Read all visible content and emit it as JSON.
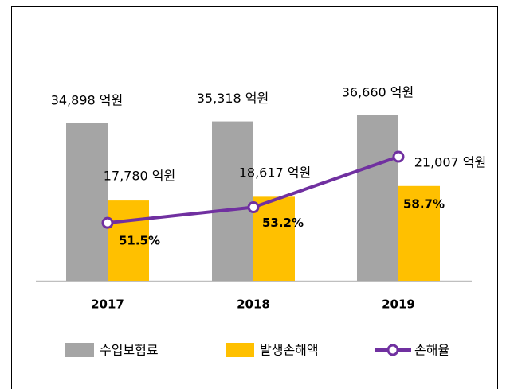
{
  "chart_data": {
    "type": "bar",
    "categories": [
      "2017",
      "2018",
      "2019"
    ],
    "ylim": [
      0,
      40000
    ],
    "y2lim": [
      40,
      60
    ],
    "series": [
      {
        "name": "수입보험료",
        "color": "#a5a5a5",
        "type": "bar",
        "values": [
          34898,
          35318,
          36660
        ],
        "value_labels": [
          "34,898 억원",
          "35,318 억원",
          "36,660 억원"
        ]
      },
      {
        "name": "발생손해액",
        "color": "#ffc000",
        "type": "bar",
        "values": [
          17780,
          18617,
          21007
        ],
        "value_labels": [
          "17,780 억원",
          "18,617 억원",
          "21,007 억원"
        ]
      },
      {
        "name": "손해율",
        "color": "#7030a0",
        "type": "line",
        "axis": "y2",
        "values": [
          51.5,
          53.2,
          58.7
        ],
        "value_labels": [
          "51.5%",
          "53.2%",
          "58.7%"
        ]
      }
    ],
    "legend": "bottom"
  }
}
